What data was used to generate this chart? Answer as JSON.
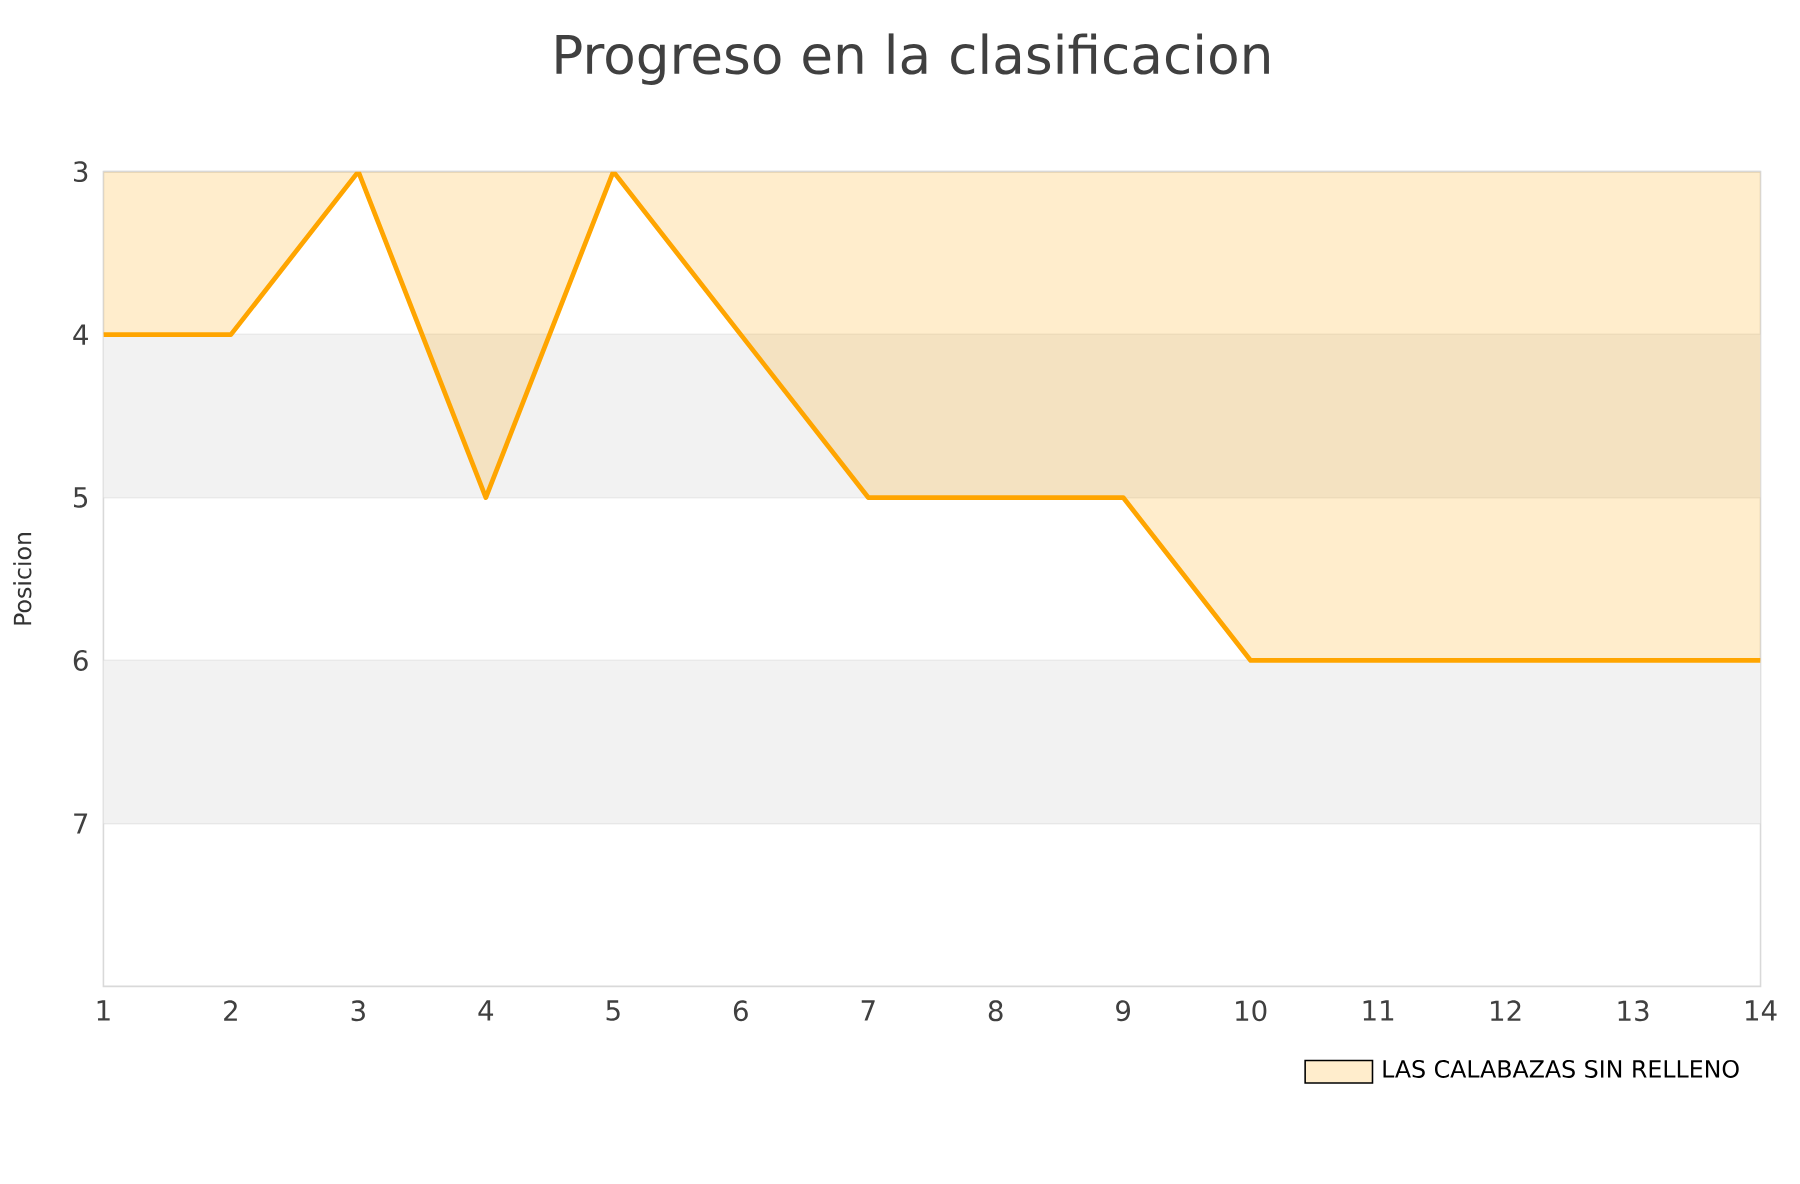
{
  "chart_data": {
    "type": "area",
    "title": "Progreso en la clasificacion",
    "ylabel": "Posicion",
    "x": [
      1,
      2,
      3,
      4,
      5,
      6,
      7,
      8,
      9,
      10,
      11,
      12,
      13,
      14
    ],
    "series": [
      {
        "name": "LAS CALABAZAS SIN RELLENO",
        "color": "#ffa500",
        "values": [
          4,
          4,
          3,
          5,
          3,
          4,
          5,
          5,
          5,
          6,
          6,
          6,
          6,
          6
        ]
      }
    ],
    "xlim": [
      1,
      14
    ],
    "xticks": [
      1,
      2,
      3,
      4,
      5,
      6,
      7,
      8,
      9,
      10,
      11,
      12,
      13,
      14
    ],
    "ylim": [
      8,
      3
    ],
    "yticks": [
      3,
      4,
      5,
      6,
      7
    ],
    "bands": [
      {
        "axis": "y",
        "from": 4,
        "to": 5,
        "color": "#f2f2f2"
      },
      {
        "axis": "y",
        "from": 6,
        "to": 7,
        "color": "#f2f2f2"
      }
    ],
    "grid": "y",
    "legend": "bottom right"
  }
}
